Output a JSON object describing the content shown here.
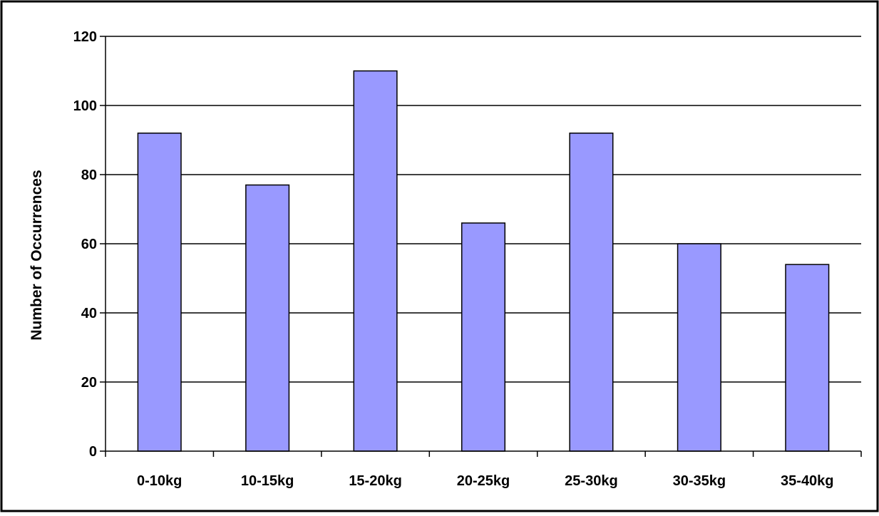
{
  "chart_data": {
    "type": "bar",
    "title": "",
    "xlabel": "",
    "ylabel": "Number of Occurrences",
    "categories": [
      "0-10kg",
      "10-15kg",
      "15-20kg",
      "20-25kg",
      "25-30kg",
      "30-35kg",
      "35-40kg"
    ],
    "values": [
      92,
      77,
      110,
      66,
      92,
      60,
      54
    ],
    "ylim": [
      0,
      120
    ],
    "yticks": [
      0,
      20,
      40,
      60,
      80,
      100,
      120
    ],
    "grid": true,
    "legend": "none",
    "bar_color": "#9999ff",
    "bar_edge_color": "#000000"
  }
}
